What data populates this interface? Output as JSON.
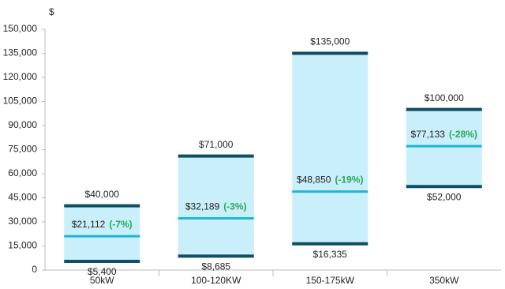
{
  "chart_data": {
    "type": "range",
    "y_label": "$",
    "categories": [
      "50kW",
      "100-120KW",
      "150-175kW",
      "350kW"
    ],
    "high": {
      "color": "#0e4f63",
      "values": [
        40000,
        71000,
        135000,
        100000
      ],
      "value_labels": [
        "$40,000",
        "$71,000",
        "$135,000",
        "$100,000"
      ]
    },
    "low": {
      "color": "#0e4f63",
      "values": [
        5400,
        8685,
        16335,
        52000
      ],
      "value_labels": [
        "$5,400",
        "$8,685",
        "$16,335",
        "$52,000"
      ]
    },
    "mid": {
      "color": "#1fb5d6",
      "values": [
        21112,
        32189,
        48850,
        77133
      ],
      "value_labels": [
        "$21,112",
        "$32,189",
        "$48,850",
        "$77,133"
      ]
    },
    "change": {
      "color": "#2aa75a",
      "values": [
        -7,
        -3,
        -19,
        -28
      ],
      "value_labels": [
        "(-7%)",
        "(-3%)",
        "(-19%)",
        "(-28%)"
      ]
    },
    "bar_color": "#c9effa",
    "ylim": [
      0,
      150000
    ],
    "yticks": [
      0,
      {
        "value": 15000,
        "label": "15,000"
      },
      {
        "value": 30000,
        "label": "30,000"
      },
      {
        "value": 45000,
        "label": "45,000"
      },
      {
        "value": 60000,
        "label": "60,000"
      },
      {
        "value": 75000,
        "label": "75,000"
      },
      {
        "value": 90000,
        "label": "90,000"
      },
      {
        "value": 105000,
        "label": "105,000"
      },
      {
        "value": 120000,
        "label": "120,000"
      },
      {
        "value": 135000,
        "label": "135,000"
      },
      {
        "value": 150000,
        "label": "150,000"
      }
    ]
  }
}
